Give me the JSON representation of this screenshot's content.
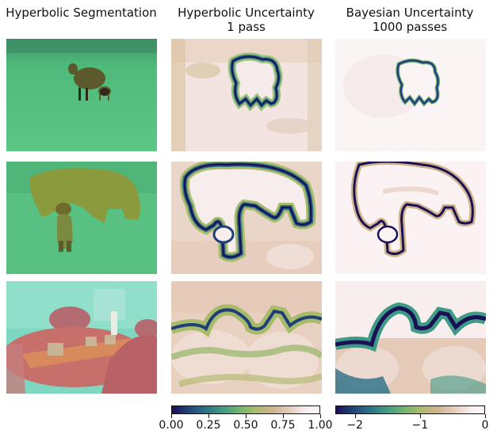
{
  "columns": {
    "segmentation_title": "Hyperbolic Segmentation",
    "hyperbolic_title_line1": "Hyperbolic Uncertainty",
    "hyperbolic_title_line2": "1 pass",
    "bayesian_title_line1": "Bayesian Uncertainty",
    "bayesian_title_line2": "1000 passes"
  },
  "rows": [
    {
      "scene": "two sheep (ewe and lamb) on grass"
    },
    {
      "scene": "close-up sheep with lamb on grass"
    },
    {
      "scene": "dining table with chairs indoors"
    }
  ],
  "colorbars": {
    "hyperbolic": {
      "ticks": [
        "0.00",
        "0.25",
        "0.50",
        "0.75",
        "1.00"
      ],
      "tick_values": [
        0.0,
        0.25,
        0.5,
        0.75,
        1.0
      ],
      "range": [
        0.0,
        1.0
      ]
    },
    "bayesian": {
      "ticks": [
        "−2",
        "−1",
        "0"
      ],
      "tick_values": [
        -2,
        -1,
        0
      ],
      "range": [
        -2.3,
        0
      ]
    }
  },
  "colormap": [
    "#1a1055",
    "#1f3f7a",
    "#2b6e86",
    "#3f9a86",
    "#71b56e",
    "#a7bb6a",
    "#cfb38d",
    "#e6cdbd",
    "#f6ecec",
    "#fff8f8"
  ]
}
